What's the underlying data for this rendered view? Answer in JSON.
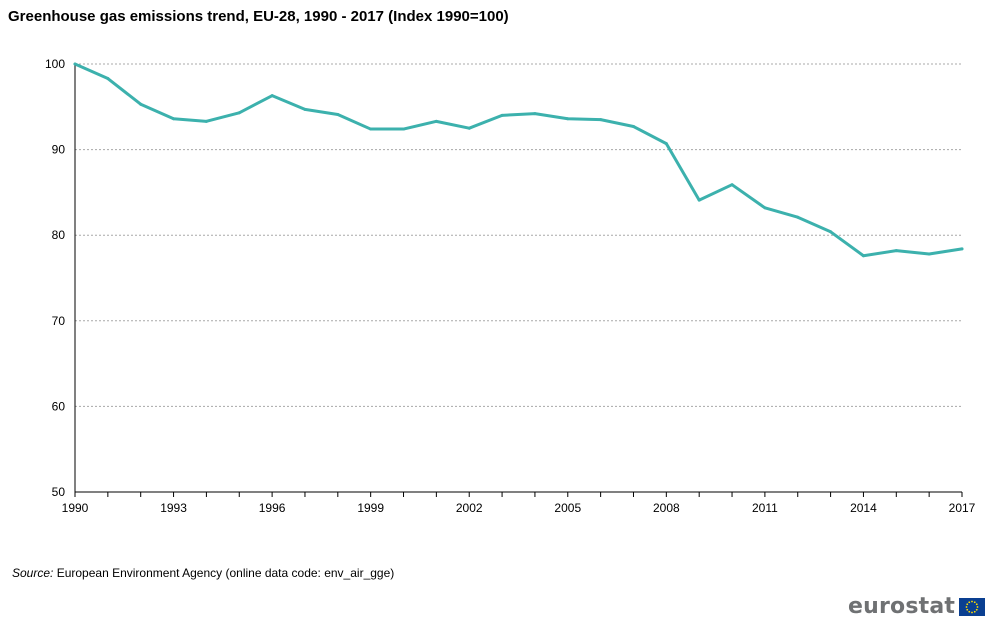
{
  "chart_data": {
    "type": "line",
    "title": "Greenhouse gas emissions trend, EU-28, 1990 - 2017 (Index 1990=100)",
    "xlabel": "",
    "ylabel": "",
    "ylim": [
      50,
      100
    ],
    "yticks": [
      50,
      60,
      70,
      80,
      90,
      100
    ],
    "xlim": [
      1990,
      2017
    ],
    "xtick_labels": [
      1990,
      1993,
      1996,
      1999,
      2002,
      2005,
      2008,
      2011,
      2014,
      2017
    ],
    "grid": "horizontal dotted",
    "legend": "none",
    "x": [
      1990,
      1991,
      1992,
      1993,
      1994,
      1995,
      1996,
      1997,
      1998,
      1999,
      2000,
      2001,
      2002,
      2003,
      2004,
      2005,
      2006,
      2007,
      2008,
      2009,
      2010,
      2011,
      2012,
      2013,
      2014,
      2015,
      2016,
      2017
    ],
    "series": [
      {
        "values": [
          100.0,
          98.3,
          95.3,
          93.6,
          93.3,
          94.3,
          96.3,
          94.7,
          94.1,
          92.4,
          92.4,
          93.3,
          92.5,
          94.0,
          94.2,
          93.6,
          93.5,
          92.7,
          90.7,
          84.1,
          85.9,
          83.2,
          82.1,
          80.4,
          77.6,
          78.2,
          77.8,
          78.4
        ],
        "color": "#3cb1ad"
      }
    ]
  },
  "source": {
    "label": "Source:",
    "text": "European Environment Agency (online data code: env_air_gge)"
  },
  "logo": {
    "text": "eurostat",
    "text_color": "#6f7173",
    "flag_color": "#0a3f91",
    "star_color": "#ffdd00"
  }
}
